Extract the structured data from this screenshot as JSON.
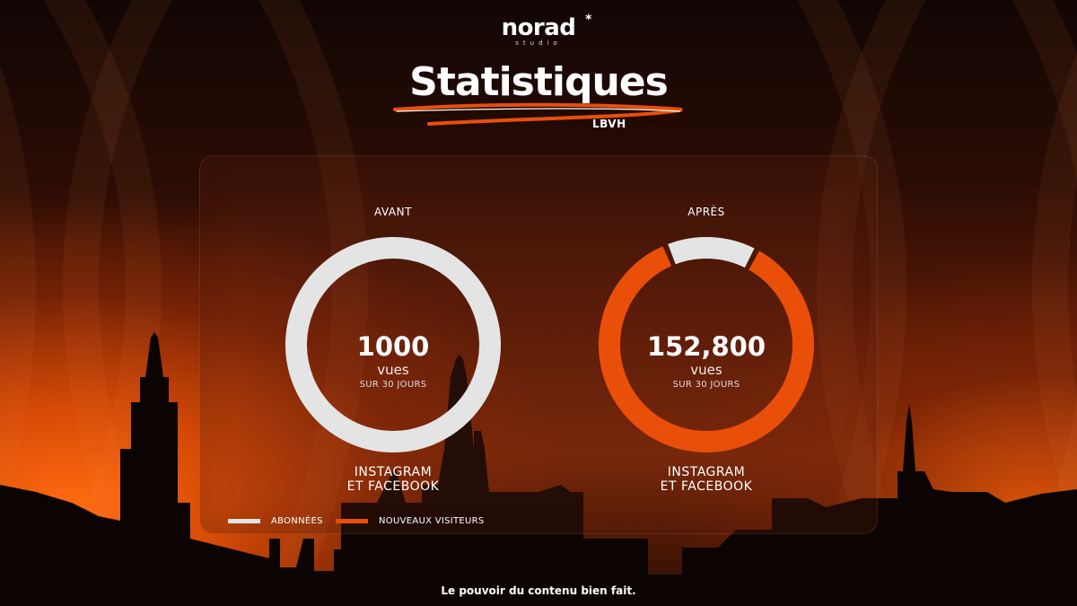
{
  "brand": {
    "name": "norad",
    "star": "*",
    "sub": "studio"
  },
  "header": {
    "title": "Statistiques",
    "subtitle": "LBVH"
  },
  "colors": {
    "accent": "#ea4f0a",
    "neutral": "#e4e4e4"
  },
  "chart_data": [
    {
      "type": "pie",
      "title": "AVANT",
      "slices": [
        {
          "name": "ABONNÉES",
          "value": 1.0
        },
        {
          "name": "NOUVEAUX VISITEURS",
          "value": 0.0
        }
      ],
      "center_value": "1000",
      "center_unit": "vues",
      "center_period": "SUR 30 JOURS",
      "caption_line1": "INSTAGRAM",
      "caption_line2": "ET FACEBOOK"
    },
    {
      "type": "pie",
      "title": "APRÈS",
      "slices": [
        {
          "name": "NOUVEAUX VISITEURS",
          "value": 0.86
        },
        {
          "name": "ABONNÉES",
          "value": 0.14
        }
      ],
      "center_value": "152,800",
      "center_unit": "vues",
      "center_period": "SUR 30 JOURS",
      "caption_line1": "INSTAGRAM",
      "caption_line2": "ET FACEBOOK"
    }
  ],
  "legend": [
    {
      "label": "ABONNÉES",
      "color": "#e4e4e4"
    },
    {
      "label": "NOUVEAUX VISITEURS",
      "color": "#ea4f0a"
    }
  ],
  "footer": {
    "tagline": "Le pouvoir du contenu bien fait."
  }
}
